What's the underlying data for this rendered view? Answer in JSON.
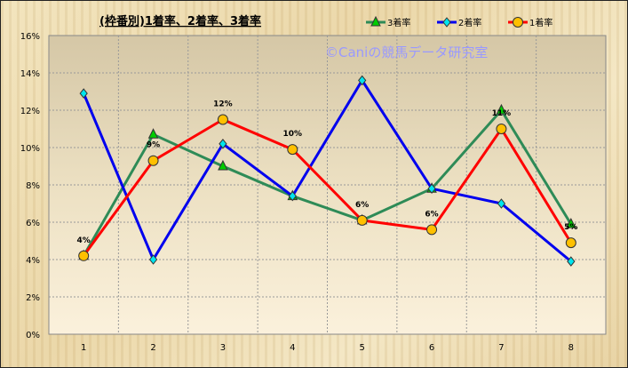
{
  "chart_data": {
    "type": "line",
    "title": "(枠番別)1着率、2着率、3着率",
    "watermark": "©Caniの競馬データ研究室",
    "xlabel": "",
    "ylabel": "",
    "categories": [
      "1",
      "2",
      "3",
      "4",
      "5",
      "6",
      "7",
      "8"
    ],
    "ylim": [
      0,
      16
    ],
    "yticks": [
      "0%",
      "2%",
      "4%",
      "6%",
      "8%",
      "10%",
      "12%",
      "14%",
      "16%"
    ],
    "grid": true,
    "legend": "top-right",
    "series": [
      {
        "name": "3着率",
        "color": "#2e8b57",
        "marker": "triangle",
        "marker_color": "#00cc00",
        "values": [
          4.2,
          10.7,
          9.0,
          7.4,
          6.1,
          7.8,
          12.0,
          5.9
        ]
      },
      {
        "name": "2着率",
        "color": "#0000ee",
        "marker": "diamond",
        "marker_color": "#00e5ee",
        "values": [
          12.9,
          4.0,
          10.2,
          7.4,
          13.6,
          7.8,
          7.0,
          3.9
        ]
      },
      {
        "name": "1着率",
        "color": "#ff0000",
        "marker": "circle",
        "marker_color": "#ffc000",
        "values": [
          4.2,
          9.3,
          11.5,
          9.9,
          6.1,
          5.6,
          11.0,
          4.9
        ],
        "data_labels": [
          "4%",
          "9%",
          "12%",
          "10%",
          "6%",
          "6%",
          "11%",
          "5%"
        ]
      }
    ]
  }
}
